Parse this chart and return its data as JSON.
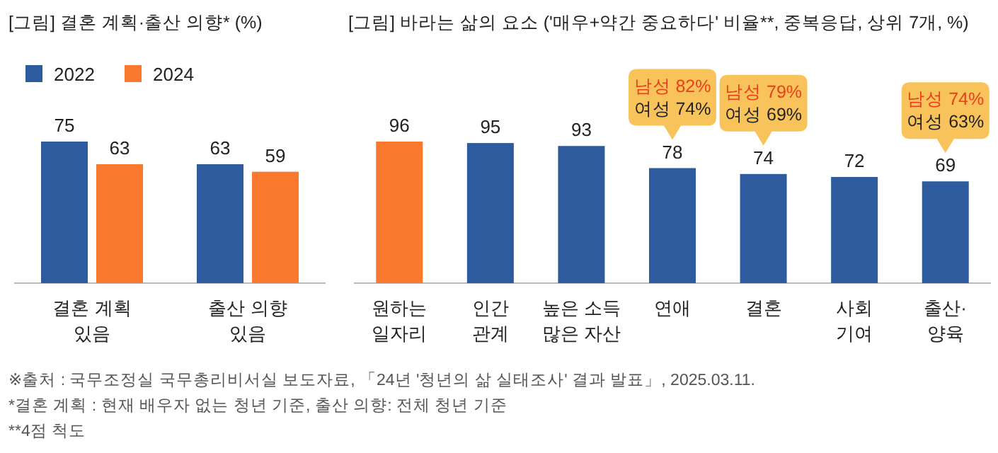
{
  "chart_data": [
    {
      "type": "bar",
      "title": "[그림] 결혼 계획·출산 의향* (%)",
      "categories": [
        "결혼 계획\n있음",
        "출산 의향\n있음"
      ],
      "series": [
        {
          "name": "2022",
          "color": "#2e5a9e",
          "values": [
            75,
            63
          ]
        },
        {
          "name": "2024",
          "color": "#f97a2e",
          "values": [
            63,
            59
          ]
        }
      ],
      "data_labels": true,
      "legend": "top left",
      "annotations": [
        "※출처 : 국무조정실 국무총리비서실 보도자료, 「24년 '청년의 삶 실태조사' 결과 발표」, 2025.03.11.",
        "*결혼 계획 : 현재 배우자 없는 청년 기준, 출산 의향: 전체 청년 기준",
        "**4점 척도"
      ]
    },
    {
      "type": "bar",
      "title": "[그림] 바라는 삶의 요소 ('매우+약간 중요하다' 비율**, 중복응답, 상위 7개, %)",
      "categories": [
        "원하는\n일자리",
        "인간\n관계",
        "높은 소득\n많은 자산",
        "연애",
        "결혼",
        "사회\n기여",
        "출산·\n양육"
      ],
      "values": [
        96,
        95,
        93,
        78,
        74,
        72,
        69
      ],
      "colors": [
        "#f97a2e",
        "#2e5a9e",
        "#2e5a9e",
        "#2e5a9e",
        "#2e5a9e",
        "#2e5a9e",
        "#2e5a9e"
      ],
      "data_labels": true,
      "annotations": [
        {
          "text": "남성 82%\n여성 74%",
          "x": "연애",
          "y": 78
        },
        {
          "text": "남성 79%\n여성 69%",
          "x": "결혼",
          "y": 74
        },
        {
          "text": "남성 74%\n여성 63%",
          "x": "출산·\n양육",
          "y": 69
        }
      ]
    }
  ]
}
